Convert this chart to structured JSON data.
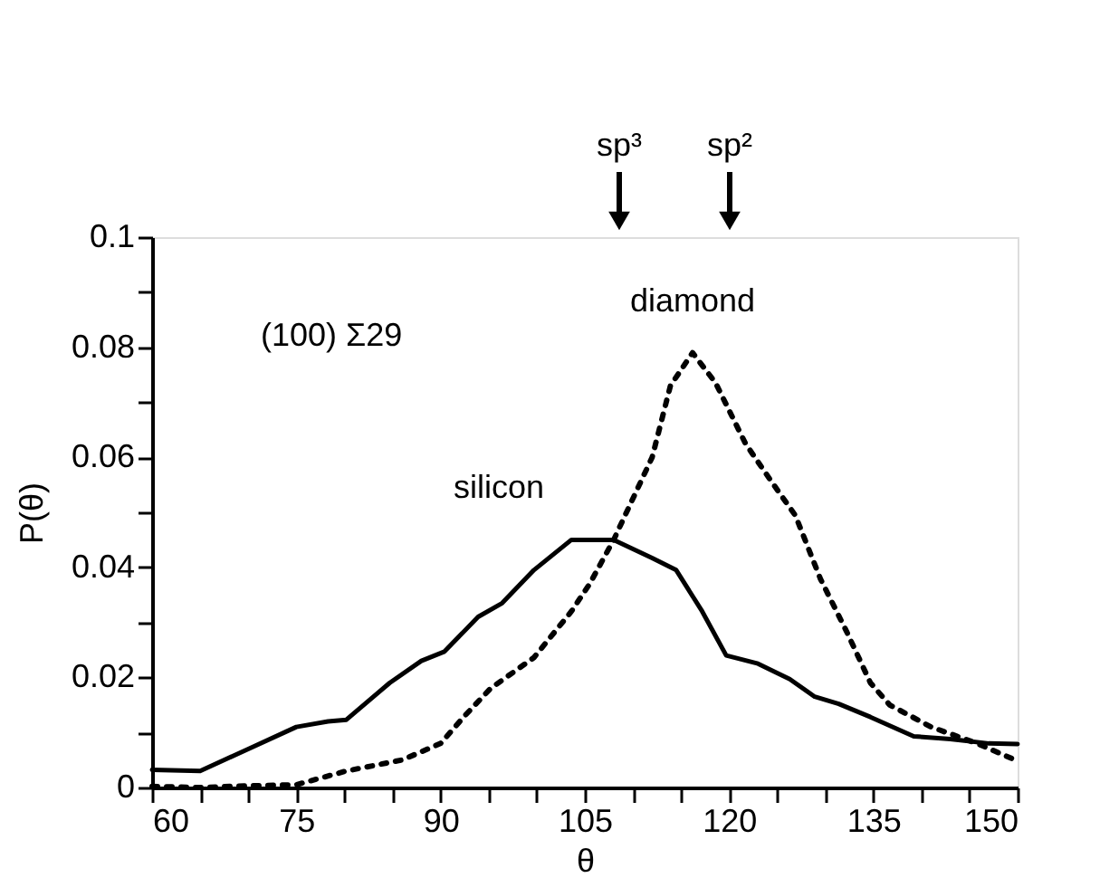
{
  "chart_data": {
    "type": "line",
    "xlabel": "θ",
    "ylabel": "P(θ)",
    "xlim": [
      60,
      150
    ],
    "ylim": [
      0,
      0.1
    ],
    "xticks": [
      60,
      {
        "value": 65,
        "label": null
      },
      {
        "value": 70,
        "label": null
      },
      75,
      {
        "value": 80,
        "label": null
      },
      {
        "value": 85,
        "label": null
      },
      90,
      {
        "value": 95,
        "label": null
      },
      {
        "value": 100,
        "label": null
      },
      105,
      {
        "value": 110,
        "label": null
      },
      {
        "value": 115,
        "label": null
      },
      120,
      {
        "value": 125,
        "label": null
      },
      {
        "value": 130,
        "label": null
      },
      135,
      {
        "value": 140,
        "label": null
      },
      {
        "value": 145,
        "label": null
      },
      150
    ],
    "yticks": [
      0,
      {
        "value": 0.01,
        "label": null
      },
      0.02,
      {
        "value": 0.03,
        "label": null
      },
      0.04,
      {
        "value": 0.05,
        "label": null
      },
      0.06,
      {
        "value": 0.07,
        "label": null
      },
      0.08,
      {
        "value": 0.09,
        "label": null
      },
      0.1
    ],
    "grid": false,
    "legend": false,
    "marker": "none",
    "series": [
      {
        "name": "silicon",
        "color": "#000000",
        "line_style": "solid",
        "x": [
          60,
          65,
          70,
          75,
          78.3,
          80.2,
          84.7,
          88,
          90.4,
          93.9,
          96.4,
          99.7,
          103.6,
          105.5,
          108,
          112,
          114.5,
          117.2,
          119.7,
          123,
          126.3,
          128.9,
          131.4,
          134.7,
          139.2,
          143,
          147,
          150
        ],
        "values": [
          0.0032,
          0.003,
          0.007,
          0.011,
          0.012,
          0.0123,
          0.019,
          0.023,
          0.0247,
          0.031,
          0.0335,
          0.0395,
          0.045,
          0.045,
          0.045,
          0.0417,
          0.0395,
          0.032,
          0.024,
          0.0225,
          0.0197,
          0.0165,
          0.0152,
          0.0128,
          0.0093,
          0.0088,
          0.008,
          0.0079
        ]
      },
      {
        "name": "diamond",
        "color": "#000000",
        "line_style": "dotted",
        "x": [
          60,
          65,
          70,
          75,
          80.2,
          86,
          90,
          92.5,
          95.2,
          99.7,
          103.6,
          105.5,
          108,
          112,
          113.9,
          116.2,
          118.6,
          121.7,
          124.4,
          126.9,
          129.5,
          132.2,
          134.7,
          136.7,
          141,
          145.8,
          150
        ],
        "values": [
          0.0002,
          0,
          0.0003,
          0.0005,
          0.003,
          0.005,
          0.008,
          0.013,
          0.018,
          0.0236,
          0.032,
          0.037,
          0.045,
          0.06,
          0.073,
          0.079,
          0.0735,
          0.0625,
          0.0556,
          0.0494,
          0.0379,
          0.0284,
          0.019,
          0.015,
          0.011,
          0.008,
          0.0048
        ]
      }
    ],
    "annotations": [
      "(100) Σ29",
      "sp³",
      "sp²"
    ]
  }
}
